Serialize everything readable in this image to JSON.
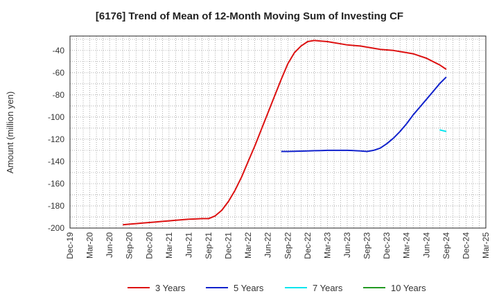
{
  "chart_data": {
    "type": "line",
    "title": "[6176]  Trend of Mean of 12-Month Moving Sum of Investing CF",
    "xlabel": "",
    "ylabel": "Amount (million yen)",
    "ylim": [
      -200,
      -27
    ],
    "yticks": [
      -200,
      -180,
      -160,
      -140,
      -120,
      -100,
      -80,
      -60,
      -40
    ],
    "xticks": [
      "Dec-19",
      "Mar-20",
      "Jun-20",
      "Sep-20",
      "Dec-20",
      "Mar-21",
      "Jun-21",
      "Sep-21",
      "Dec-21",
      "Mar-22",
      "Jun-22",
      "Sep-22",
      "Dec-22",
      "Mar-23",
      "Jun-23",
      "Sep-23",
      "Dec-23",
      "Mar-24",
      "Jun-24",
      "Sep-24",
      "Dec-24",
      "Mar-25"
    ],
    "grid": true,
    "legend_position": "bottom",
    "series": [
      {
        "name": "3 Years",
        "color": "#dd1111",
        "points": [
          [
            "Aug-20",
            -197
          ],
          [
            "Sep-20",
            -196.5
          ],
          [
            "Oct-20",
            -196
          ],
          [
            "Nov-20",
            -195.5
          ],
          [
            "Dec-20",
            -195
          ],
          [
            "Jan-21",
            -194.5
          ],
          [
            "Feb-21",
            -194
          ],
          [
            "Mar-21",
            -193.5
          ],
          [
            "Apr-21",
            -193
          ],
          [
            "May-21",
            -192.5
          ],
          [
            "Jun-21",
            -192
          ],
          [
            "Jul-21",
            -191.8
          ],
          [
            "Aug-21",
            -191.5
          ],
          [
            "Sep-21",
            -191.5
          ],
          [
            "Oct-21",
            -189
          ],
          [
            "Nov-21",
            -184
          ],
          [
            "Dec-21",
            -176
          ],
          [
            "Jan-22",
            -166
          ],
          [
            "Feb-22",
            -154
          ],
          [
            "Mar-22",
            -140
          ],
          [
            "Apr-22",
            -126
          ],
          [
            "May-22",
            -111
          ],
          [
            "Jun-22",
            -96
          ],
          [
            "Jul-22",
            -81
          ],
          [
            "Aug-22",
            -66
          ],
          [
            "Sep-22",
            -52
          ],
          [
            "Oct-22",
            -42
          ],
          [
            "Nov-22",
            -36
          ],
          [
            "Dec-22",
            -32
          ],
          [
            "Jan-23",
            -31
          ],
          [
            "Feb-23",
            -31.5
          ],
          [
            "Mar-23",
            -32
          ],
          [
            "Apr-23",
            -33
          ],
          [
            "May-23",
            -34
          ],
          [
            "Jun-23",
            -35
          ],
          [
            "Jul-23",
            -35.5
          ],
          [
            "Aug-23",
            -36
          ],
          [
            "Sep-23",
            -37
          ],
          [
            "Oct-23",
            -38
          ],
          [
            "Nov-23",
            -39
          ],
          [
            "Dec-23",
            -39.5
          ],
          [
            "Jan-24",
            -40
          ],
          [
            "Feb-24",
            -41
          ],
          [
            "Mar-24",
            -42
          ],
          [
            "Apr-24",
            -43
          ],
          [
            "May-24",
            -45
          ],
          [
            "Jun-24",
            -47
          ],
          [
            "Jul-24",
            -50
          ],
          [
            "Aug-24",
            -53
          ],
          [
            "Sep-24",
            -57
          ]
        ]
      },
      {
        "name": "5 Years",
        "color": "#1122cc",
        "points": [
          [
            "Aug-22",
            -131
          ],
          [
            "Sep-22",
            -131
          ],
          [
            "Oct-22",
            -130.8
          ],
          [
            "Nov-22",
            -130.7
          ],
          [
            "Dec-22",
            -130.5
          ],
          [
            "Jan-23",
            -130.3
          ],
          [
            "Feb-23",
            -130.2
          ],
          [
            "Mar-23",
            -130
          ],
          [
            "Apr-23",
            -130
          ],
          [
            "May-23",
            -130
          ],
          [
            "Jun-23",
            -130
          ],
          [
            "Jul-23",
            -130.2
          ],
          [
            "Aug-23",
            -130.5
          ],
          [
            "Sep-23",
            -131
          ],
          [
            "Oct-23",
            -130
          ],
          [
            "Nov-23",
            -128
          ],
          [
            "Dec-23",
            -124
          ],
          [
            "Jan-24",
            -119
          ],
          [
            "Feb-24",
            -113
          ],
          [
            "Mar-24",
            -106
          ],
          [
            "Apr-24",
            -98
          ],
          [
            "May-24",
            -91
          ],
          [
            "Jun-24",
            -84
          ],
          [
            "Jul-24",
            -77
          ],
          [
            "Aug-24",
            -70
          ],
          [
            "Sep-24",
            -64
          ]
        ]
      },
      {
        "name": "7 Years",
        "color": "#00e5ee",
        "points": [
          [
            "Aug-24",
            -111.5
          ],
          [
            "Sep-24",
            -113
          ]
        ]
      },
      {
        "name": "10 Years",
        "color": "#229922",
        "points": []
      }
    ]
  }
}
